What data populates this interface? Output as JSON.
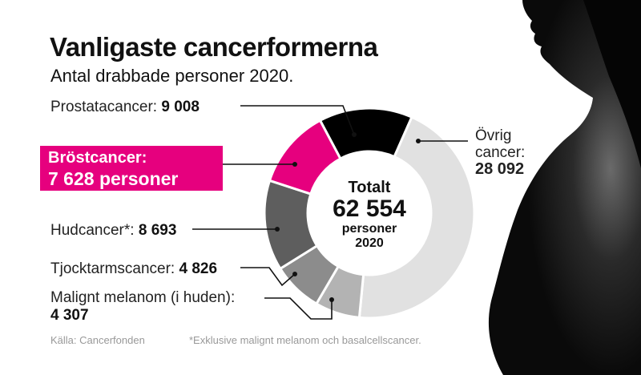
{
  "header": {
    "title": "Vanligaste cancerformerna",
    "subtitle": "Antal drabbade personer 2020."
  },
  "labels": {
    "prostata_name": "Prostatacancer:",
    "prostata_value": "9 008",
    "brost_name": "Bröstcancer:",
    "brost_value": "7 628 personer",
    "hud_name": "Hudcancer*:",
    "hud_value": "8 693",
    "tjocktarm_name": "Tjocktarmscancer:",
    "tjocktarm_value": "4 826",
    "melanom_name": "Malignt melanom (i huden):",
    "melanom_value": "4 307",
    "ovrig_line1": "Övrig",
    "ovrig_line2": "cancer:",
    "ovrig_value": "28 092"
  },
  "center": {
    "line1": "Totalt",
    "line2": "62 554",
    "line3": "personer",
    "line4": "2020"
  },
  "footer": {
    "source": "Källa: Cancerfonden",
    "note": "*Exklusive malignt melanom och basalcellscancer."
  },
  "chart_data": {
    "type": "pie",
    "title": "Vanligaste cancerformerna",
    "subtitle": "Antal drabbade personer 2020.",
    "total": 62554,
    "categories": [
      "Prostatacancer",
      "Övrig cancer",
      "Malignt melanom (i huden)",
      "Tjocktarmscancer",
      "Hudcancer*",
      "Bröstcancer"
    ],
    "values": [
      9008,
      28092,
      4307,
      4826,
      8693,
      7628
    ],
    "colors": [
      "#000000",
      "#e1e1e1",
      "#b3b3b3",
      "#8c8c8c",
      "#5e5e5e",
      "#e6007e"
    ],
    "highlight": "Bröstcancer"
  }
}
